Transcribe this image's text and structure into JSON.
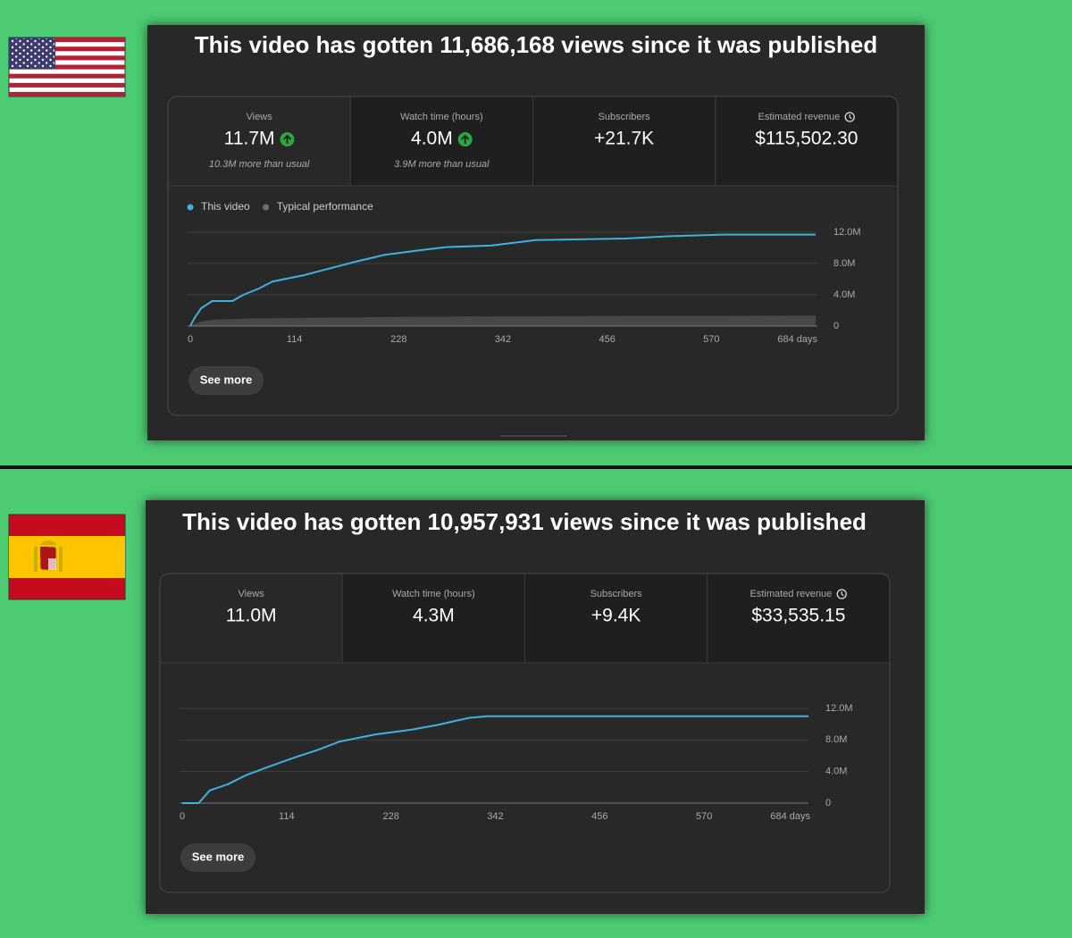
{
  "panels": [
    {
      "title": "This video has gotten 11,686,168 views since it was published",
      "metrics": [
        {
          "label": "Views",
          "value": "11.7M",
          "note": "10.3M more than usual",
          "trend": "up"
        },
        {
          "label": "Watch time (hours)",
          "value": "4.0M",
          "note": "3.9M more than usual",
          "trend": "up"
        },
        {
          "label": "Subscribers",
          "value": "+21.7K"
        },
        {
          "label": "Estimated revenue",
          "value": "$115,502.30",
          "icon": "clock"
        }
      ],
      "chart": {
        "type": "line",
        "x": [
          0,
          5,
          12,
          24,
          46,
          58,
          75,
          90,
          124,
          153,
          183,
          212,
          251,
          280,
          329,
          378,
          476,
          525,
          583,
          684
        ],
        "series": [
          {
            "name": "This video",
            "color": "#3fb0e0",
            "values": [
              0,
              1100000,
              2300000,
              3200000,
              3200000,
              4000000,
              4800000,
              5700000,
              6500000,
              7400000,
              8300000,
              9100000,
              9700000,
              10100000,
              10300000,
              11000000,
              11200000,
              11500000,
              11700000,
              11700000
            ]
          },
          {
            "name": "Typical performance",
            "color": "#6e6e6e",
            "area": true,
            "values": [
              0,
              300000,
              600000,
              800000,
              900000,
              950000,
              1000000,
              1000000,
              1050000,
              1100000,
              1100000,
              1150000,
              1200000,
              1200000,
              1250000,
              1250000,
              1300000,
              1300000,
              1300000,
              1350000
            ]
          }
        ],
        "xlim": [
          0,
          684
        ],
        "xticks": [
          0,
          114,
          228,
          342,
          456,
          570,
          {
            "value": 684,
            "label": "684 days"
          }
        ],
        "ylim": [
          0,
          12000000
        ],
        "yticks": [
          0,
          {
            "value": 4000000,
            "label": "4.0M"
          },
          {
            "value": 8000000,
            "label": "8.0M"
          },
          {
            "value": 12000000,
            "label": "12.0M"
          }
        ],
        "grid": true,
        "legend": "top-left"
      },
      "button": "See more"
    },
    {
      "title": "This video has gotten 10,957,931 views since it was published",
      "metrics": [
        {
          "label": "Views",
          "value": "11.0M"
        },
        {
          "label": "Watch time (hours)",
          "value": "4.3M"
        },
        {
          "label": "Subscribers",
          "value": "+9.4K"
        },
        {
          "label": "Estimated revenue",
          "value": "$33,535.15",
          "icon": "clock"
        }
      ],
      "chart": {
        "type": "line",
        "x": [
          0,
          18,
          30,
          50,
          69,
          94,
          123,
          147,
          172,
          211,
          250,
          279,
          313,
          333,
          684
        ],
        "series": [
          {
            "color": "#3fb0e0",
            "values": [
              0,
              0,
              1600000,
              2400000,
              3500000,
              4600000,
              5800000,
              6700000,
              7800000,
              8700000,
              9300000,
              9900000,
              10800000,
              11000000,
              11000000
            ]
          }
        ],
        "xlim": [
          0,
          684
        ],
        "xticks": [
          0,
          114,
          228,
          342,
          456,
          570,
          {
            "value": 684,
            "label": "684 days"
          }
        ],
        "ylim": [
          0,
          12000000
        ],
        "yticks": [
          0,
          {
            "value": 4000000,
            "label": "4.0M"
          },
          {
            "value": 8000000,
            "label": "8.0M"
          },
          {
            "value": 12000000,
            "label": "12.0M"
          }
        ],
        "grid": true
      },
      "button": "See more"
    }
  ]
}
